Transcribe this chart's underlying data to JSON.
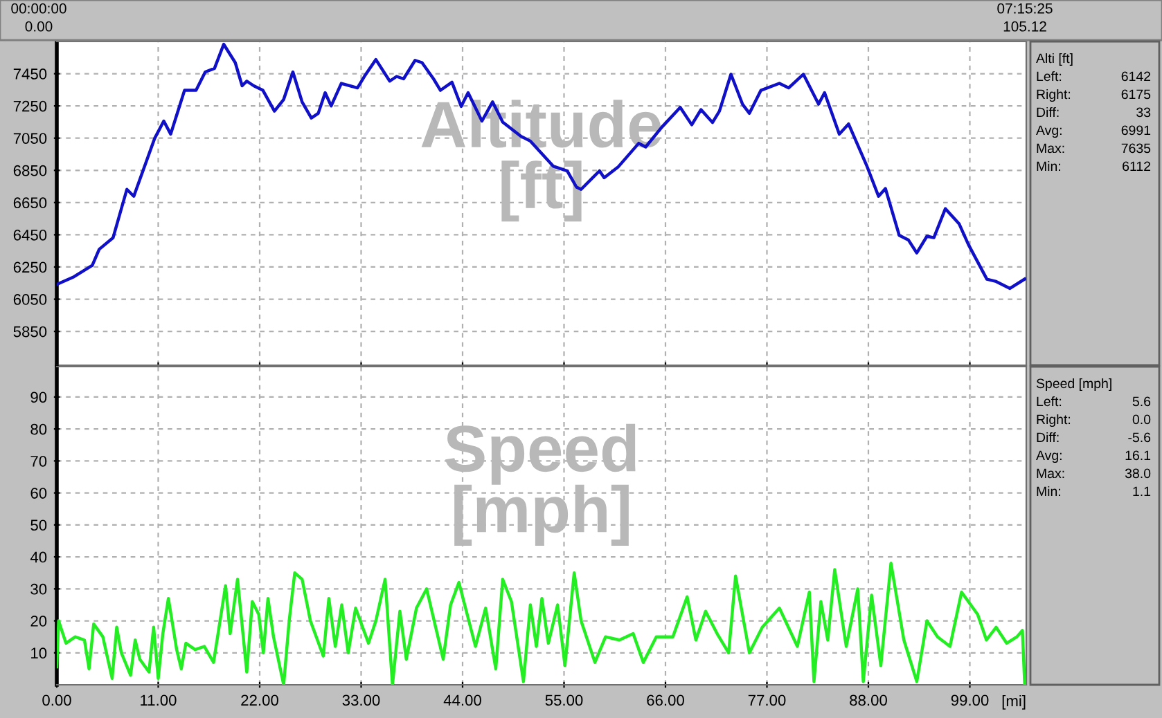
{
  "chart_data": [
    {
      "type": "line",
      "title": "Altitude\n[ft]",
      "xlim": [
        0,
        105.12
      ],
      "ylim": [
        5640,
        7650
      ],
      "xticks": [
        0,
        11,
        22,
        33,
        44,
        55,
        66,
        77,
        88,
        99
      ],
      "yticks": [
        5850,
        6050,
        6250,
        6450,
        6650,
        6850,
        7050,
        7250,
        7450
      ],
      "tick_labels": "y",
      "grid": true,
      "marker": "none",
      "line_style": "solid",
      "annotations": [
        "00:00:00",
        "0.00",
        "07:15:25",
        "105.12",
        "Alti [ft]",
        "Left:",
        "6142",
        "Right:",
        "6175",
        "Diff:",
        "33",
        "Avg:",
        "6991",
        "Max:",
        "7635",
        "Min:",
        "6112"
      ],
      "series": [
        {
          "color": "#1010c8",
          "x": [
            0,
            1.85,
            3.85,
            4.6,
            6.1,
            7.6,
            8.35,
            10.6,
            11.6,
            12.35,
            13.85,
            15.1,
            16.1,
            17.1,
            18.1,
            19.35,
            20.1,
            20.6,
            21.35,
            22.35,
            23.6,
            24.6,
            25.6,
            26.6,
            27.6,
            28.35,
            29.1,
            29.75,
            30.85,
            32.6,
            33.35,
            34.6,
            36.1,
            36.85,
            37.6,
            38.85,
            39.6,
            40.85,
            41.6,
            42.85,
            43.85,
            44.6,
            46.1,
            47.25,
            48.35,
            50.35,
            51.35,
            53.85,
            55.35,
            56.35,
            56.85,
            58.85,
            59.35,
            60.85,
            63.1,
            63.85,
            65.6,
            67.6,
            68.85,
            69.85,
            71.1,
            71.85,
            73.1,
            74.35,
            75.1,
            76.35,
            78.35,
            79.35,
            80.95,
            82.6,
            83.25,
            84.85,
            85.85,
            87.85,
            89.1,
            89.85,
            91.35,
            92.35,
            93.25,
            94.35,
            95.1,
            96.35,
            97.85,
            98.85,
            100.85,
            101.85,
            103.35,
            104.95
          ],
          "values": [
            6142,
            6189,
            6260,
            6360,
            6431,
            6732,
            6689,
            7047,
            7156,
            7075,
            7347,
            7347,
            7461,
            7483,
            7633,
            7519,
            7375,
            7404,
            7375,
            7347,
            7218,
            7290,
            7461,
            7275,
            7175,
            7204,
            7332,
            7250,
            7390,
            7362,
            7433,
            7538,
            7404,
            7433,
            7418,
            7533,
            7519,
            7418,
            7347,
            7397,
            7247,
            7332,
            7156,
            7275,
            7150,
            7061,
            7032,
            6875,
            6846,
            6746,
            6732,
            6847,
            6804,
            6870,
            7018,
            6995,
            7118,
            7241,
            7133,
            7227,
            7147,
            7218,
            7447,
            7261,
            7204,
            7347,
            7390,
            7362,
            7447,
            7261,
            7332,
            7075,
            7138,
            6875,
            6689,
            6737,
            6446,
            6417,
            6337,
            6441,
            6432,
            6612,
            6517,
            6389,
            6174,
            6160,
            6117,
            6175
          ]
        }
      ]
    },
    {
      "type": "line",
      "title": "Speed\n[mph]",
      "xlabel": "[mi]",
      "xlim": [
        0,
        105.12
      ],
      "ylim": [
        0,
        99.5
      ],
      "xticks": [
        {
          "value": 0,
          "label": "0.00"
        },
        {
          "value": 11,
          "label": "11.00"
        },
        {
          "value": 22,
          "label": "22.00"
        },
        {
          "value": 33,
          "label": "33.00"
        },
        {
          "value": 44,
          "label": "44.00"
        },
        {
          "value": 55,
          "label": "55.00"
        },
        {
          "value": 66,
          "label": "66.00"
        },
        {
          "value": 77,
          "label": "77.00"
        },
        {
          "value": 88,
          "label": "88.00"
        },
        {
          "value": 99,
          "label": "99.00"
        }
      ],
      "yticks": [
        10,
        20,
        30,
        40,
        50,
        60,
        70,
        80,
        90
      ],
      "grid": true,
      "marker": "none",
      "line_style": "solid",
      "annotations": [
        "Speed [mph]",
        "Left:",
        "5.6",
        "Right:",
        "0.0",
        "Diff:",
        "-5.6",
        "Avg:",
        "16.1",
        "Max:",
        "38.0",
        "Min:",
        "1.1"
      ],
      "series": [
        {
          "color": "#22ee22",
          "x": [
            0,
            0.2,
            1,
            2,
            3,
            3.5,
            4,
            5,
            6,
            6.5,
            7,
            8,
            8.5,
            9,
            10,
            10.5,
            11,
            11.5,
            12.1,
            13,
            13.5,
            14,
            15,
            16,
            17,
            18.3,
            18.8,
            19.6,
            20.6,
            21.2,
            21.9,
            22.4,
            22.9,
            23.5,
            24.6,
            25.2,
            25.8,
            26.6,
            27.5,
            28.9,
            29.5,
            30.2,
            30.9,
            31.6,
            32.4,
            33.8,
            34.6,
            35.6,
            36.4,
            37.2,
            37.9,
            39,
            40.1,
            41.9,
            42.7,
            43.6,
            45.4,
            46.5,
            47.6,
            48.35,
            49.3,
            50.6,
            51.35,
            52,
            52.6,
            53.3,
            54.3,
            55.1,
            56.1,
            56.85,
            58.35,
            59.5,
            61,
            62.5,
            63.6,
            65,
            66.8,
            68.35,
            69.3,
            70.35,
            71.6,
            72.85,
            73.6,
            75.1,
            76.5,
            78.35,
            80.3,
            81.6,
            82.1,
            82.85,
            83.6,
            84.35,
            85.6,
            86.85,
            87.45,
            88.35,
            89.35,
            90.45,
            91.85,
            93.25,
            94.35,
            95.5,
            96.85,
            98.1,
            99.85,
            100.8,
            101.85,
            103,
            104.1,
            104.7,
            104.95
          ],
          "values": [
            5.6,
            20,
            13,
            15,
            14,
            5,
            19,
            15,
            2,
            18,
            10,
            3,
            14,
            8,
            4,
            18,
            2,
            16,
            27,
            11,
            5,
            13,
            11,
            12,
            7,
            31,
            16,
            33,
            4,
            26,
            22,
            10,
            27,
            15,
            0,
            20,
            35,
            33,
            20,
            9,
            27,
            12,
            25,
            10,
            24,
            13,
            20,
            33,
            0,
            23,
            8,
            24,
            30,
            8,
            25,
            32,
            12,
            24,
            5,
            33,
            26,
            1,
            25,
            12,
            27,
            13,
            25,
            6,
            35,
            20,
            7,
            15,
            14,
            16,
            7,
            15,
            15,
            27.5,
            14,
            23,
            16,
            10,
            34,
            10,
            18,
            24,
            12,
            29,
            1,
            26,
            14,
            36,
            12,
            30,
            1,
            28,
            6,
            38,
            14,
            1,
            20,
            15,
            12,
            29,
            22,
            14,
            18,
            13,
            15,
            17,
            0
          ]
        }
      ]
    }
  ]
}
